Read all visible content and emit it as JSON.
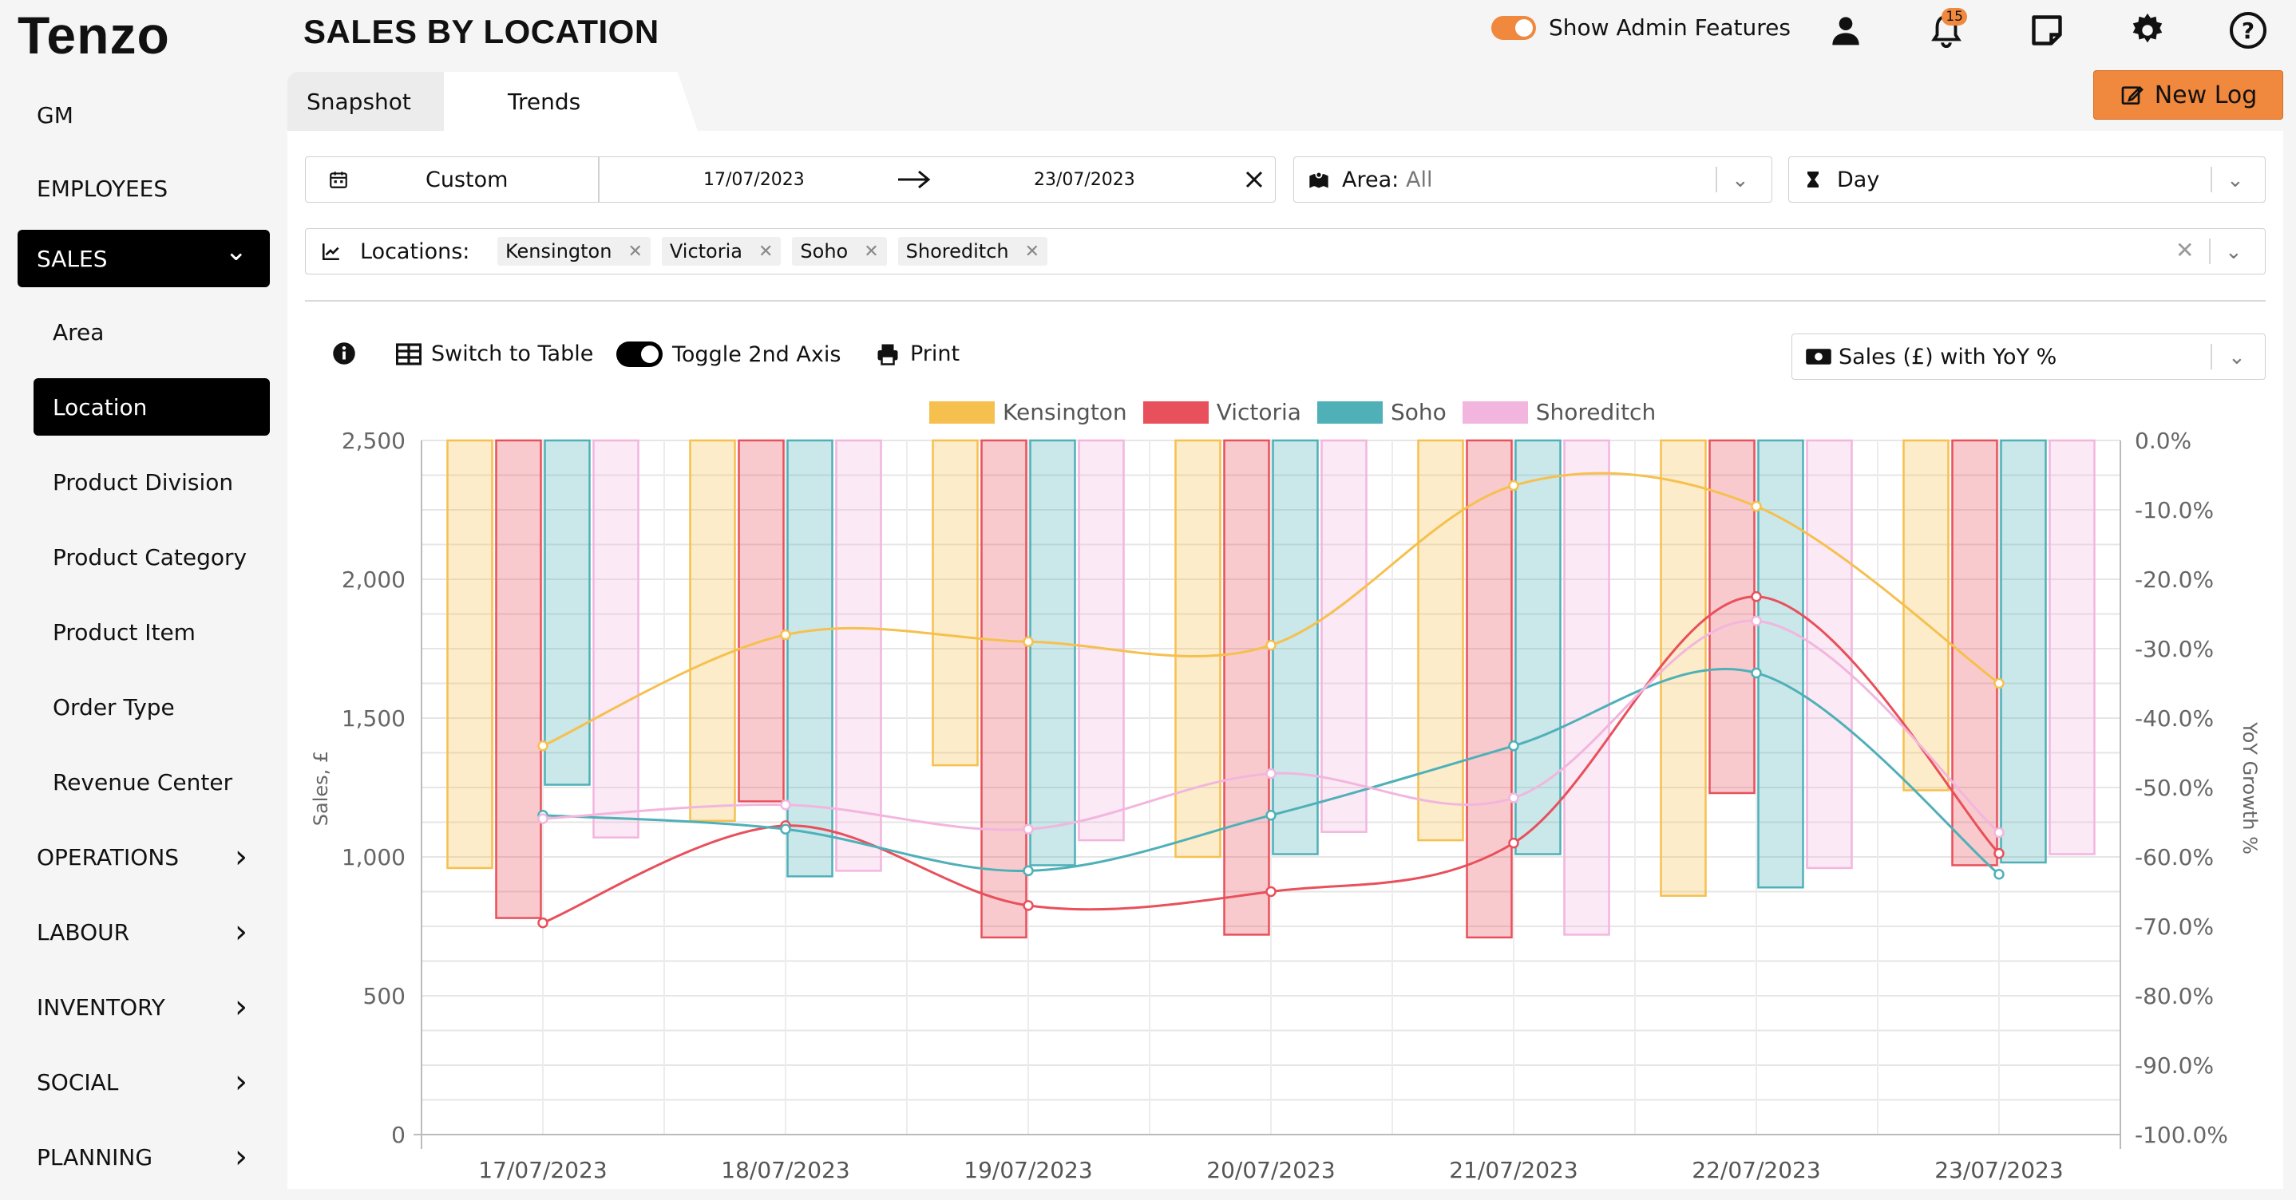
{
  "app": {
    "logo": "Tenzo",
    "title": "SALES BY LOCATION"
  },
  "sidebar": {
    "items": [
      {
        "label": "GM",
        "level": "top"
      },
      {
        "label": "EMPLOYEES",
        "level": "top"
      },
      {
        "label": "SALES",
        "level": "top",
        "active": true,
        "expanded": true
      },
      {
        "label": "Area",
        "level": "sub"
      },
      {
        "label": "Location",
        "level": "sub",
        "active": true
      },
      {
        "label": "Product Division",
        "level": "sub"
      },
      {
        "label": "Product Category",
        "level": "sub"
      },
      {
        "label": "Product Item",
        "level": "sub"
      },
      {
        "label": "Order Type",
        "level": "sub"
      },
      {
        "label": "Revenue Center",
        "level": "sub"
      },
      {
        "label": "OPERATIONS",
        "level": "top"
      },
      {
        "label": "LABOUR",
        "level": "top"
      },
      {
        "label": "INVENTORY",
        "level": "top"
      },
      {
        "label": "SOCIAL",
        "level": "top"
      },
      {
        "label": "PLANNING",
        "level": "top"
      }
    ]
  },
  "header": {
    "admin_label": "Show Admin Features",
    "admin_enabled": true,
    "notification_count": "15",
    "new_log_label": "New Log",
    "icons": [
      "user-icon",
      "bell-icon",
      "note-icon",
      "gear-icon",
      "help-icon"
    ]
  },
  "tabs": [
    {
      "label": "Snapshot"
    },
    {
      "label": "Trends",
      "active": true
    }
  ],
  "filters": {
    "range_type": "Custom",
    "start_date": "17/07/2023",
    "end_date": "23/07/2023",
    "area_label": "Area:",
    "area_value": "All",
    "granularity": "Day",
    "locations_label": "Locations:",
    "locations": [
      "Kensington",
      "Victoria",
      "Soho",
      "Shoreditch"
    ]
  },
  "toolbar": {
    "switch_table": "Switch to Table",
    "toggle_axis": "Toggle 2nd Axis",
    "print": "Print",
    "metric": "Sales (£) with YoY %"
  },
  "colors": {
    "Kensington": "#f6c04f",
    "Victoria": "#e8505b",
    "Soho": "#4fb0b8",
    "Shoreditch": "#f2b6de",
    "accent": "#f0883e"
  },
  "chart_data": {
    "type": "bar",
    "categories": [
      "17/07/2023",
      "18/07/2023",
      "19/07/2023",
      "20/07/2023",
      "21/07/2023",
      "22/07/2023",
      "23/07/2023"
    ],
    "ylabel": "Sales, £",
    "y2label": "YoY Growth %",
    "ylim": [
      0,
      2500
    ],
    "y2lim": [
      -100,
      0
    ],
    "yticks": [
      "0",
      "500",
      "1,000",
      "1,500",
      "2,000",
      "2,500"
    ],
    "y2ticks": [
      "-100.0%",
      "-90.0%",
      "-80.0%",
      "-70.0%",
      "-60.0%",
      "-50.0%",
      "-40.0%",
      "-30.0%",
      "-20.0%",
      "-10.0%",
      "0.0%"
    ],
    "series": [
      {
        "name": "Kensington",
        "values": [
          960,
          1130,
          1330,
          1000,
          1060,
          860,
          1240
        ],
        "yoy": [
          -44,
          -28,
          -29,
          -29.5,
          -6.5,
          -9.5,
          -35
        ]
      },
      {
        "name": "Victoria",
        "values": [
          780,
          1200,
          710,
          720,
          710,
          1230,
          970
        ],
        "yoy": [
          -69.5,
          -55.5,
          -67,
          -65,
          -58,
          -22.5,
          -59.5
        ]
      },
      {
        "name": "Soho",
        "values": [
          1260,
          930,
          970,
          1010,
          1010,
          890,
          980
        ],
        "yoy": [
          -54,
          -56,
          -62,
          -54,
          -44,
          -33.5,
          -62.5
        ]
      },
      {
        "name": "Shoreditch",
        "values": [
          1070,
          950,
          1060,
          1090,
          720,
          960,
          1010
        ],
        "yoy": [
          -54.5,
          -52.5,
          -56,
          -48,
          -51.5,
          -26,
          -56.5
        ]
      }
    ]
  }
}
